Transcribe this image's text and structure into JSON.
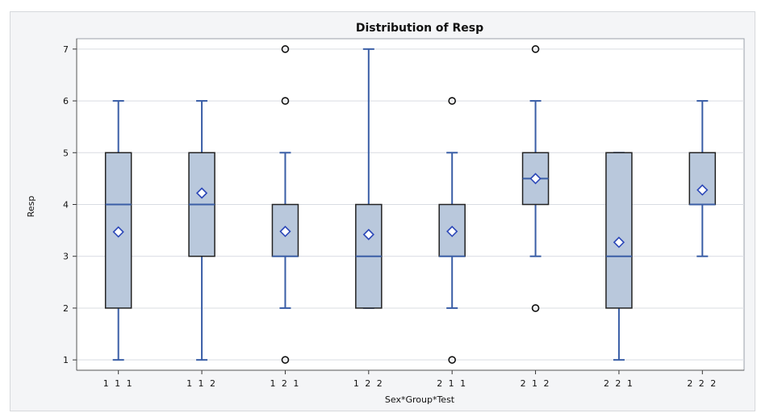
{
  "chart_data": {
    "type": "boxplot",
    "title": "Distribution of Resp",
    "xlabel": "Sex*Group*Test",
    "ylabel": "Resp",
    "ylim": [
      0.8,
      7.2
    ],
    "yticks": [
      1,
      2,
      3,
      4,
      5,
      6,
      7
    ],
    "grid": true,
    "categories": [
      "1 1 1",
      "1 1 2",
      "1 2 1",
      "1 2 2",
      "2 1 1",
      "2 1 2",
      "2 2 1",
      "2 2 2"
    ],
    "boxes": [
      {
        "category": "1 1 1",
        "min": 1,
        "q1": 2,
        "median": 4,
        "q3": 5,
        "max": 6,
        "mean": 3.47,
        "outliers": []
      },
      {
        "category": "1 1 2",
        "min": 1,
        "q1": 3,
        "median": 4,
        "q3": 5,
        "max": 6,
        "mean": 4.22,
        "outliers": []
      },
      {
        "category": "1 2 1",
        "min": 2,
        "q1": 3,
        "median": 3,
        "q3": 4,
        "max": 5,
        "mean": 3.48,
        "outliers": [
          1,
          6,
          7
        ]
      },
      {
        "category": "1 2 2",
        "min": 2,
        "q1": 2,
        "median": 3,
        "q3": 4,
        "max": 7,
        "mean": 3.42,
        "outliers": []
      },
      {
        "category": "2 1 1",
        "min": 2,
        "q1": 3,
        "median": 3,
        "q3": 4,
        "max": 5,
        "mean": 3.48,
        "outliers": [
          1,
          6
        ]
      },
      {
        "category": "2 1 2",
        "min": 3,
        "q1": 4,
        "median": 4.5,
        "q3": 5,
        "max": 6,
        "mean": 4.5,
        "outliers": [
          2,
          7
        ]
      },
      {
        "category": "2 2 1",
        "min": 1,
        "q1": 2,
        "median": 3,
        "q3": 5,
        "max": 5,
        "mean": 3.27,
        "outliers": []
      },
      {
        "category": "2 2 2",
        "min": 3,
        "q1": 4,
        "median": 4,
        "q3": 5,
        "max": 6,
        "mean": 4.28,
        "outliers": []
      }
    ],
    "colors": {
      "box_fill": "#b9c8dc",
      "box_edge": "#222222",
      "whisker": "#3a5ea6",
      "median": "#3a5ea6",
      "mean_marker": "#2b47b8",
      "outlier": "#111111",
      "grid": "#d9dce2",
      "plot_bg": "#ffffff",
      "outer_bg": "#f4f5f7"
    }
  }
}
